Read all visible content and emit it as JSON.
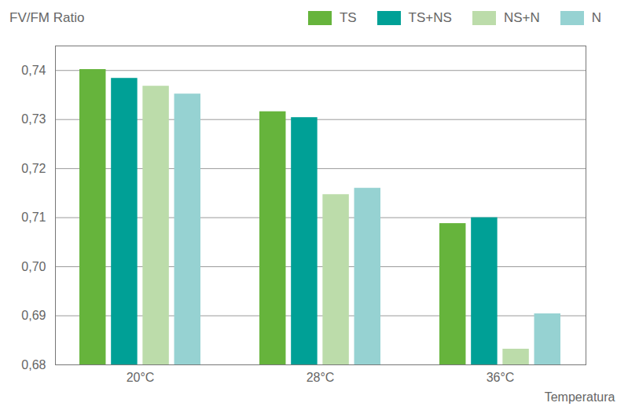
{
  "chart_data": {
    "type": "bar",
    "y_label": "FV/FM Ratio",
    "x_label": "Temperatura",
    "categories": [
      "20°C",
      "28°C",
      "36°C"
    ],
    "series": [
      {
        "name": "TS",
        "color": "#66b43c",
        "values": [
          0.7402,
          0.7316,
          0.7088
        ]
      },
      {
        "name": "TS+NS",
        "color": "#00a096",
        "values": [
          0.7384,
          0.7304,
          0.71
        ]
      },
      {
        "name": "NS+N",
        "color": "#bcdcaa",
        "values": [
          0.7368,
          0.7147,
          0.6832
        ]
      },
      {
        "name": "N",
        "color": "#96d2d2",
        "values": [
          0.7352,
          0.716,
          0.6904
        ]
      }
    ],
    "ylim": [
      0.68,
      0.745
    ],
    "yticks": [
      {
        "value": 0.68,
        "label": "0,68"
      },
      {
        "value": 0.69,
        "label": "0,69"
      },
      {
        "value": 0.7,
        "label": "0,70"
      },
      {
        "value": 0.71,
        "label": "0,71"
      },
      {
        "value": 0.72,
        "label": "0,72"
      },
      {
        "value": 0.73,
        "label": "0,73"
      },
      {
        "value": 0.74,
        "label": "0,74"
      }
    ],
    "grid": true,
    "legend": "top"
  }
}
